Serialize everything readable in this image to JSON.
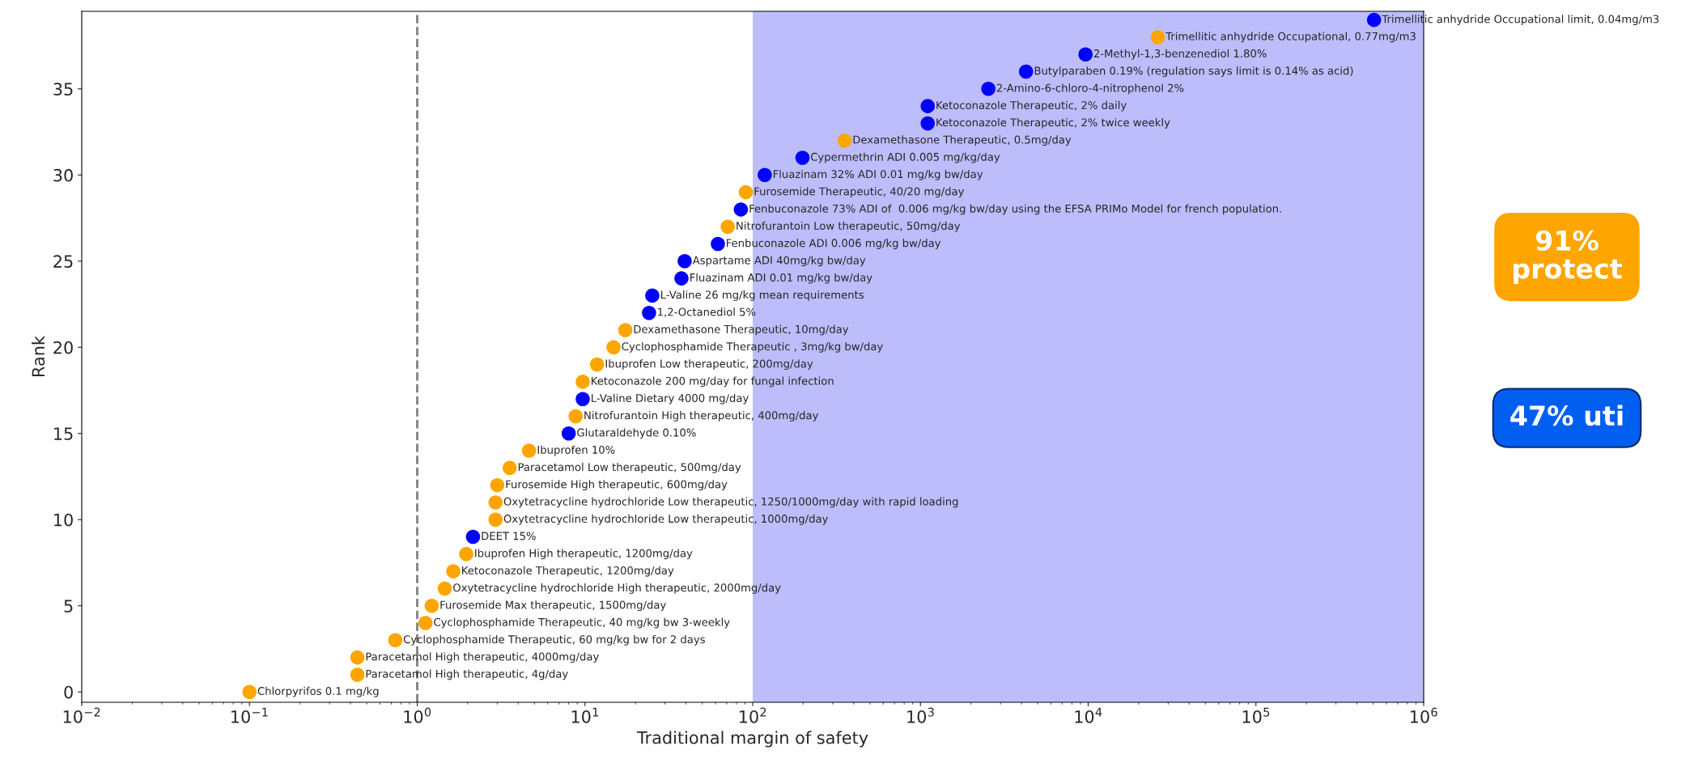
{
  "chart_data": {
    "type": "scatter",
    "xlabel": "Traditional margin of safety",
    "ylabel": "Rank",
    "log": "x",
    "grid": false,
    "legend": false,
    "marker": "circle",
    "xlim": [
      0.01,
      1000000
    ],
    "ylim": [
      -0.6,
      39.5
    ],
    "xticks": [
      {
        "value": 0.01,
        "label": "10$^{−2}$"
      },
      {
        "value": 0.1,
        "label": "10$^{−1}$"
      },
      {
        "value": 1,
        "label": "10$^{0}$"
      },
      {
        "value": 10,
        "label": "10$^{1}$"
      },
      {
        "value": 100,
        "label": "10$^{2}$"
      },
      {
        "value": 1000,
        "label": "10$^{3}$"
      },
      {
        "value": 10000,
        "label": "10$^{4}$"
      },
      {
        "value": 100000,
        "label": "10$^{5}$"
      },
      {
        "value": 1000000,
        "label": "10$^{6}$"
      }
    ],
    "yticks": [
      0,
      5,
      10,
      15,
      20,
      25,
      30,
      35
    ],
    "series": [
      {
        "color": "#ffa500",
        "x": [
          0.1,
          0.44,
          0.44,
          0.74,
          1.12,
          1.22,
          1.46,
          1.64,
          1.96,
          2.93,
          2.93,
          3.0,
          3.56,
          4.64,
          8.8,
          9.7,
          11.8,
          14.8,
          17.4,
          71,
          91,
          353,
          26000
        ],
        "values": [
          0,
          1,
          2,
          3,
          4,
          5,
          6,
          7,
          8,
          10,
          11,
          12,
          13,
          14,
          16,
          18,
          19,
          20,
          21,
          27,
          29,
          32,
          38
        ]
      },
      {
        "color": "#0000ff",
        "x": [
          2.15,
          8.0,
          9.7,
          24.1,
          25.2,
          37.6,
          39.3,
          62,
          85,
          118,
          198,
          1105,
          1105,
          2540,
          4260,
          9640,
          506000
        ],
        "values": [
          9,
          15,
          17,
          22,
          23,
          24,
          25,
          26,
          28,
          30,
          31,
          33,
          34,
          35,
          36,
          37,
          39
        ]
      }
    ],
    "ref_lines": [
      {
        "axis": "x",
        "value": 1,
        "color": "#808080",
        "line_style": "dashed"
      }
    ],
    "bands": [
      {
        "axis": "x",
        "from": 100,
        "to": 1000000,
        "color": "#bdbdfc"
      }
    ],
    "annotations": [
      {
        "text": "Chlorpyrifos 0.1 mg/kg",
        "x": 0.1,
        "y": 0
      },
      {
        "text": "Paracetamol High therapeutic, 4g/day",
        "x": 0.44,
        "y": 1
      },
      {
        "text": "Paracetamol High therapeutic, 4000mg/day",
        "x": 0.44,
        "y": 2
      },
      {
        "text": "Cyclophosphamide Therapeutic, 60 mg/kg bw for 2 days",
        "x": 0.74,
        "y": 3
      },
      {
        "text": "Cyclophosphamide Therapeutic, 40 mg/kg bw 3-weekly",
        "x": 1.12,
        "y": 4
      },
      {
        "text": "Furosemide Max therapeutic, 1500mg/day",
        "x": 1.22,
        "y": 5
      },
      {
        "text": "Oxytetracycline hydrochloride High therapeutic, 2000mg/day",
        "x": 1.46,
        "y": 6
      },
      {
        "text": "Ketoconazole Therapeutic, 1200mg/day",
        "x": 1.64,
        "y": 7
      },
      {
        "text": "Ibuprofen High therapeutic, 1200mg/day",
        "x": 1.96,
        "y": 8
      },
      {
        "text": "DEET 15%",
        "x": 2.15,
        "y": 9
      },
      {
        "text": "Oxytetracycline hydrochloride Low therapeutic, 1000mg/day",
        "x": 2.93,
        "y": 10
      },
      {
        "text": "Oxytetracycline hydrochloride Low therapeutic, 1250/1000mg/day with rapid loading",
        "x": 2.93,
        "y": 11
      },
      {
        "text": "Furosemide High therapeutic, 600mg/day",
        "x": 3.0,
        "y": 12
      },
      {
        "text": "Paracetamol Low therapeutic, 500mg/day",
        "x": 3.56,
        "y": 13
      },
      {
        "text": "Ibuprofen 10%",
        "x": 4.64,
        "y": 14
      },
      {
        "text": "Glutaraldehyde 0.10%",
        "x": 8.0,
        "y": 15
      },
      {
        "text": "Nitrofurantoin High therapeutic, 400mg/day",
        "x": 8.8,
        "y": 16
      },
      {
        "text": "L-Valine Dietary 4000 mg/day",
        "x": 9.7,
        "y": 17
      },
      {
        "text": "Ketoconazole 200 mg/day for fungal infection",
        "x": 9.7,
        "y": 18
      },
      {
        "text": "Ibuprofen Low therapeutic, 200mg/day",
        "x": 11.8,
        "y": 19
      },
      {
        "text": "Cyclophosphamide Therapeutic , 3mg/kg bw/day",
        "x": 14.8,
        "y": 20
      },
      {
        "text": "Dexamethasone Therapeutic, 10mg/day",
        "x": 17.4,
        "y": 21
      },
      {
        "text": "1,2-Octanediol 5%",
        "x": 24.1,
        "y": 22
      },
      {
        "text": "L-Valine 26 mg/kg mean requirements",
        "x": 25.2,
        "y": 23
      },
      {
        "text": "Fluazinam ADI 0.01 mg/kg bw/day",
        "x": 37.6,
        "y": 24
      },
      {
        "text": "Aspartame ADI 40mg/kg bw/day",
        "x": 39.3,
        "y": 25
      },
      {
        "text": "Fenbuconazole ADI 0.006 mg/kg bw/day",
        "x": 62,
        "y": 26
      },
      {
        "text": "Nitrofurantoin Low therapeutic, 50mg/day",
        "x": 71,
        "y": 27
      },
      {
        "text": "Fenbuconazole 73% ADI of  0.006 mg/kg bw/day using the EFSA PRIMo Model for french population.",
        "x": 85,
        "y": 28
      },
      {
        "text": "Furosemide Therapeutic, 40/20 mg/day",
        "x": 91,
        "y": 29
      },
      {
        "text": "Fluazinam 32% ADI 0.01 mg/kg bw/day",
        "x": 118,
        "y": 30
      },
      {
        "text": "Cypermethrin ADI 0.005 mg/kg/day",
        "x": 198,
        "y": 31
      },
      {
        "text": "Dexamethasone Therapeutic, 0.5mg/day",
        "x": 353,
        "y": 32
      },
      {
        "text": "Ketoconazole Therapeutic, 2% twice weekly",
        "x": 1105,
        "y": 33
      },
      {
        "text": "Ketoconazole Therapeutic, 2% daily",
        "x": 1105,
        "y": 34
      },
      {
        "text": "2-Amino-6-chloro-4-nitrophenol 2%",
        "x": 2540,
        "y": 35
      },
      {
        "text": "Butylparaben 0.19% (regulation says limit is 0.14% as acid)",
        "x": 4260,
        "y": 36
      },
      {
        "text": "2-Methyl-1,3-benzenediol 1.80%",
        "x": 9640,
        "y": 37
      },
      {
        "text": "Trimellitic anhydride Occupational, 0.77mg/m3",
        "x": 26000,
        "y": 38
      },
      {
        "text": "Trimellitic anhydride Occupational limit, 0.04mg/m3",
        "x": 506000,
        "y": 39
      },
      "91%\nprotect",
      "47% uti"
    ]
  }
}
